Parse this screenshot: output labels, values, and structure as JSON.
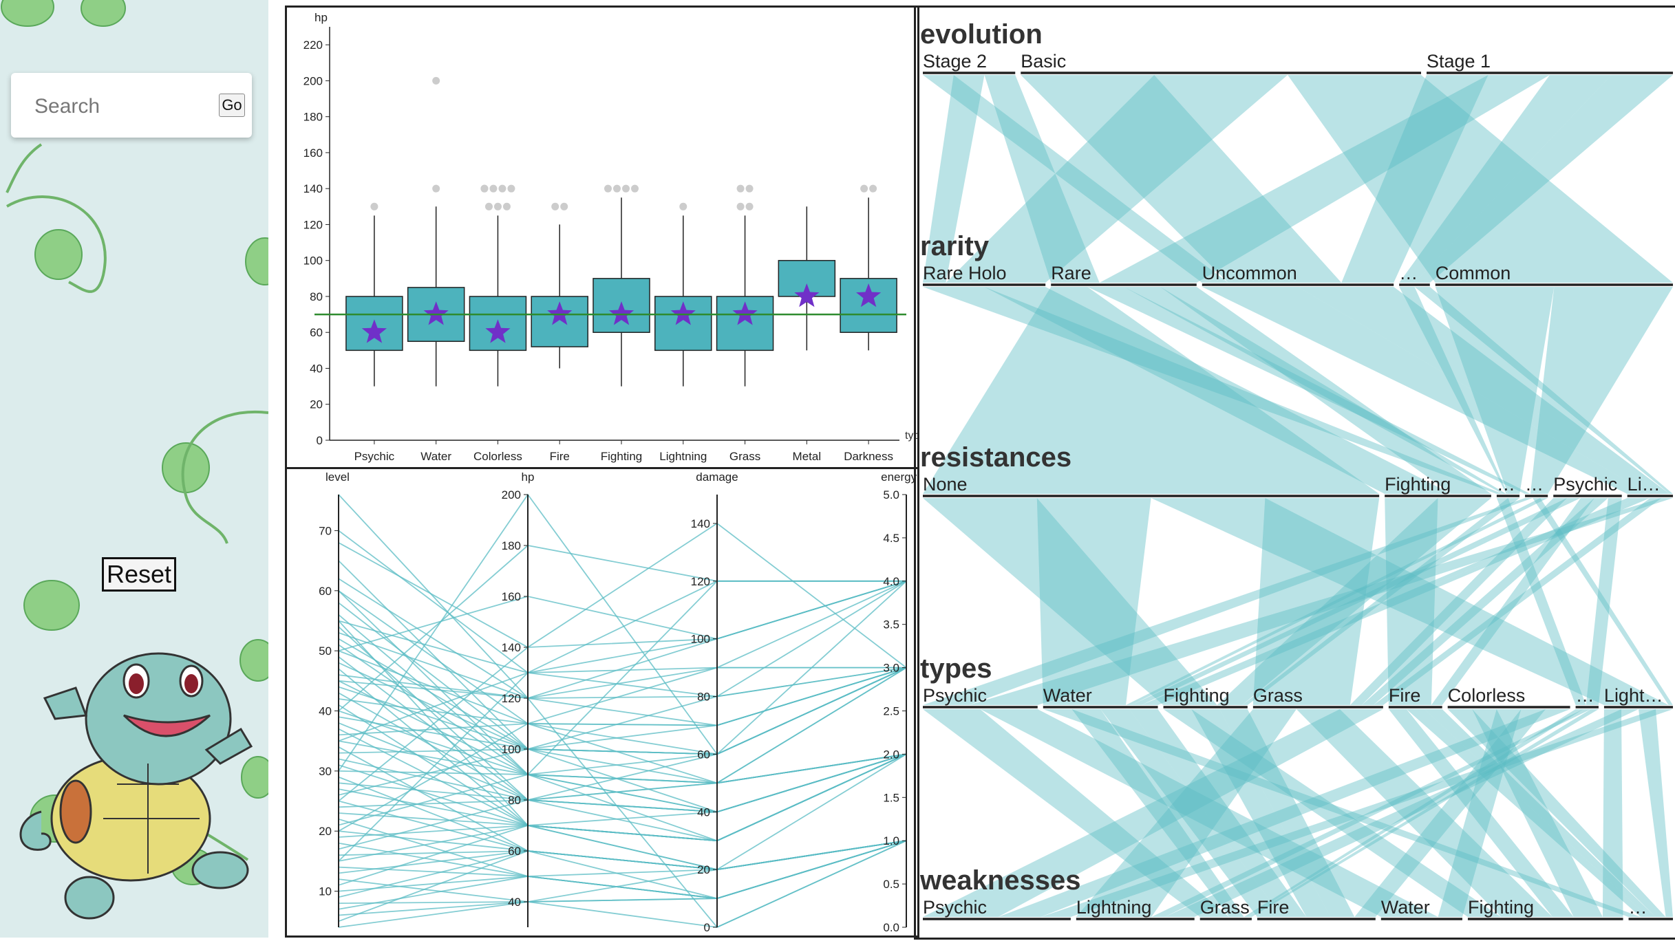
{
  "sidebar": {
    "search": {
      "placeholder": "Search",
      "go_label": "Go"
    },
    "reset_label": "Reset"
  },
  "colors": {
    "accent": "#4db3bd",
    "line": "#5bbcc4",
    "median_star": "#7030c8",
    "mean_line": "#2e8b2e",
    "outlier": "#cccccc",
    "sidebar_bg": "#dcecec"
  },
  "chart_data": [
    {
      "type": "box",
      "ylabel": "hp",
      "xlabel": "types",
      "ylim": [
        0,
        230
      ],
      "yticks": [
        0,
        20,
        40,
        60,
        80,
        100,
        120,
        140,
        160,
        180,
        200,
        220
      ],
      "reference_line": 70,
      "categories": [
        "Psychic",
        "Water",
        "Colorless",
        "Fire",
        "Fighting",
        "Lightning",
        "Grass",
        "Metal",
        "Darkness"
      ],
      "boxes": [
        {
          "min": 30,
          "q1": 50,
          "median": 60,
          "q3": 80,
          "max": 125,
          "outliers": [
            130
          ]
        },
        {
          "min": 30,
          "q1": 55,
          "median": 70,
          "q3": 85,
          "max": 130,
          "outliers": [
            140,
            200
          ]
        },
        {
          "min": 30,
          "q1": 50,
          "median": 60,
          "q3": 80,
          "max": 125,
          "outliers": [
            130,
            130,
            130,
            140,
            140,
            140,
            140,
            140
          ]
        },
        {
          "min": 40,
          "q1": 52,
          "median": 70,
          "q3": 80,
          "max": 120,
          "outliers": [
            130,
            130
          ]
        },
        {
          "min": 30,
          "q1": 60,
          "median": 70,
          "q3": 90,
          "max": 135,
          "outliers": [
            140,
            140,
            140,
            140
          ]
        },
        {
          "min": 30,
          "q1": 50,
          "median": 70,
          "q3": 80,
          "max": 125,
          "outliers": [
            130
          ]
        },
        {
          "min": 30,
          "q1": 50,
          "median": 70,
          "q3": 80,
          "max": 125,
          "outliers": [
            130,
            130,
            140,
            140
          ]
        },
        {
          "min": 50,
          "q1": 80,
          "median": 80,
          "q3": 100,
          "max": 130,
          "outliers": []
        },
        {
          "min": 50,
          "q1": 60,
          "median": 80,
          "q3": 90,
          "max": 135,
          "outliers": [
            140,
            140
          ]
        }
      ]
    },
    {
      "type": "parallel",
      "axes": [
        {
          "name": "level",
          "min": 4,
          "max": 76,
          "ticks": [
            10,
            20,
            30,
            40,
            50,
            60,
            70
          ]
        },
        {
          "name": "hp",
          "min": 30,
          "max": 200,
          "ticks": [
            40,
            60,
            80,
            100,
            120,
            140,
            160,
            180,
            200
          ]
        },
        {
          "name": "damage",
          "min": 0,
          "max": 150,
          "ticks": [
            0,
            20,
            40,
            60,
            80,
            100,
            120,
            140
          ]
        },
        {
          "name": "energyCo",
          "min": 0,
          "max": 5,
          "ticks": [
            "0.0",
            "0.5",
            "1.0",
            "1.5",
            "2.0",
            "2.5",
            "3.0",
            "3.5",
            "4.0",
            "4.5",
            "5.0"
          ]
        }
      ],
      "rows": [
        [
          76,
          120,
          0,
          1
        ],
        [
          70,
          130,
          120,
          4
        ],
        [
          68,
          140,
          100,
          4
        ],
        [
          65,
          100,
          60,
          3
        ],
        [
          62,
          120,
          80,
          3
        ],
        [
          60,
          110,
          50,
          3
        ],
        [
          58,
          100,
          40,
          2
        ],
        [
          56,
          90,
          30,
          2
        ],
        [
          55,
          130,
          100,
          4
        ],
        [
          54,
          80,
          60,
          3
        ],
        [
          53,
          120,
          90,
          3
        ],
        [
          52,
          100,
          70,
          3
        ],
        [
          51,
          90,
          50,
          2
        ],
        [
          50,
          110,
          60,
          3
        ],
        [
          49,
          80,
          40,
          2
        ],
        [
          48,
          100,
          80,
          3
        ],
        [
          47,
          70,
          30,
          2
        ],
        [
          46,
          120,
          70,
          3
        ],
        [
          45,
          90,
          40,
          2
        ],
        [
          44,
          100,
          60,
          3
        ],
        [
          43,
          80,
          50,
          2
        ],
        [
          42,
          110,
          90,
          4
        ],
        [
          41,
          70,
          20,
          1
        ],
        [
          40,
          90,
          60,
          3
        ],
        [
          39,
          100,
          50,
          2
        ],
        [
          38,
          80,
          30,
          2
        ],
        [
          37,
          70,
          40,
          2
        ],
        [
          36,
          110,
          70,
          3
        ],
        [
          35,
          90,
          50,
          3
        ],
        [
          34,
          60,
          20,
          1
        ],
        [
          33,
          100,
          60,
          3
        ],
        [
          32,
          80,
          40,
          2
        ],
        [
          31,
          70,
          30,
          2
        ],
        [
          30,
          90,
          50,
          2
        ],
        [
          29,
          60,
          20,
          1
        ],
        [
          28,
          80,
          40,
          2
        ],
        [
          27,
          70,
          30,
          2
        ],
        [
          26,
          100,
          60,
          3
        ],
        [
          25,
          60,
          20,
          1
        ],
        [
          24,
          80,
          50,
          2
        ],
        [
          23,
          70,
          30,
          2
        ],
        [
          22,
          50,
          10,
          1
        ],
        [
          21,
          90,
          40,
          2
        ],
        [
          20,
          60,
          20,
          1
        ],
        [
          19,
          70,
          30,
          2
        ],
        [
          18,
          50,
          10,
          1
        ],
        [
          17,
          80,
          40,
          2
        ],
        [
          16,
          60,
          20,
          1
        ],
        [
          15,
          70,
          30,
          2
        ],
        [
          14,
          50,
          10,
          1
        ],
        [
          13,
          60,
          20,
          1
        ],
        [
          12,
          40,
          10,
          1
        ],
        [
          11,
          70,
          30,
          2
        ],
        [
          10,
          50,
          20,
          1
        ],
        [
          9,
          60,
          10,
          1
        ],
        [
          8,
          40,
          20,
          1
        ],
        [
          7,
          50,
          10,
          1
        ],
        [
          6,
          40,
          0,
          1
        ],
        [
          5,
          60,
          20,
          2
        ],
        [
          4,
          40,
          10,
          1
        ],
        [
          30,
          200,
          60,
          4
        ],
        [
          40,
          180,
          120,
          4
        ],
        [
          25,
          140,
          140,
          3
        ],
        [
          50,
          160,
          100,
          4
        ],
        [
          35,
          130,
          80,
          4
        ],
        [
          45,
          120,
          100,
          4
        ],
        [
          20,
          110,
          70,
          3
        ],
        [
          60,
          90,
          120,
          4
        ],
        [
          15,
          130,
          90,
          3
        ],
        [
          55,
          70,
          20,
          1
        ]
      ]
    },
    {
      "type": "parallel-sets",
      "dimensions": [
        {
          "name": "evolution",
          "categories": [
            {
              "label": "Stage 2",
              "weight": 12
            },
            {
              "label": "Basic",
              "weight": 52
            },
            {
              "label": "Stage 1",
              "weight": 32
            }
          ]
        },
        {
          "name": "rarity",
          "categories": [
            {
              "label": "Rare Holo",
              "weight": 16
            },
            {
              "label": "Rare",
              "weight": 19
            },
            {
              "label": "Uncommon",
              "weight": 25
            },
            {
              "label": "…",
              "weight": 4
            },
            {
              "label": "Common",
              "weight": 31
            }
          ]
        },
        {
          "name": "resistances",
          "categories": [
            {
              "label": "None",
              "weight": 60
            },
            {
              "label": "Fighting",
              "weight": 14
            },
            {
              "label": "…",
              "weight": 3
            },
            {
              "label": "…",
              "weight": 3
            },
            {
              "label": "Psychic",
              "weight": 9
            },
            {
              "label": "Li…",
              "weight": 6
            }
          ]
        },
        {
          "name": "types",
          "categories": [
            {
              "label": "Psychic",
              "weight": 15
            },
            {
              "label": "Water",
              "weight": 15
            },
            {
              "label": "Fighting",
              "weight": 11
            },
            {
              "label": "Grass",
              "weight": 17
            },
            {
              "label": "Fire",
              "weight": 7
            },
            {
              "label": "Colorless",
              "weight": 16
            },
            {
              "label": "…",
              "weight": 3
            },
            {
              "label": "Light…",
              "weight": 9
            }
          ]
        },
        {
          "name": "weaknesses",
          "categories": [
            {
              "label": "Psychic",
              "weight": 20
            },
            {
              "label": "Lightning",
              "weight": 16
            },
            {
              "label": "Grass",
              "weight": 7
            },
            {
              "label": "Fire",
              "weight": 16
            },
            {
              "label": "Water",
              "weight": 11
            },
            {
              "label": "Fighting",
              "weight": 21
            },
            {
              "label": "…",
              "weight": 6
            }
          ]
        }
      ]
    }
  ]
}
